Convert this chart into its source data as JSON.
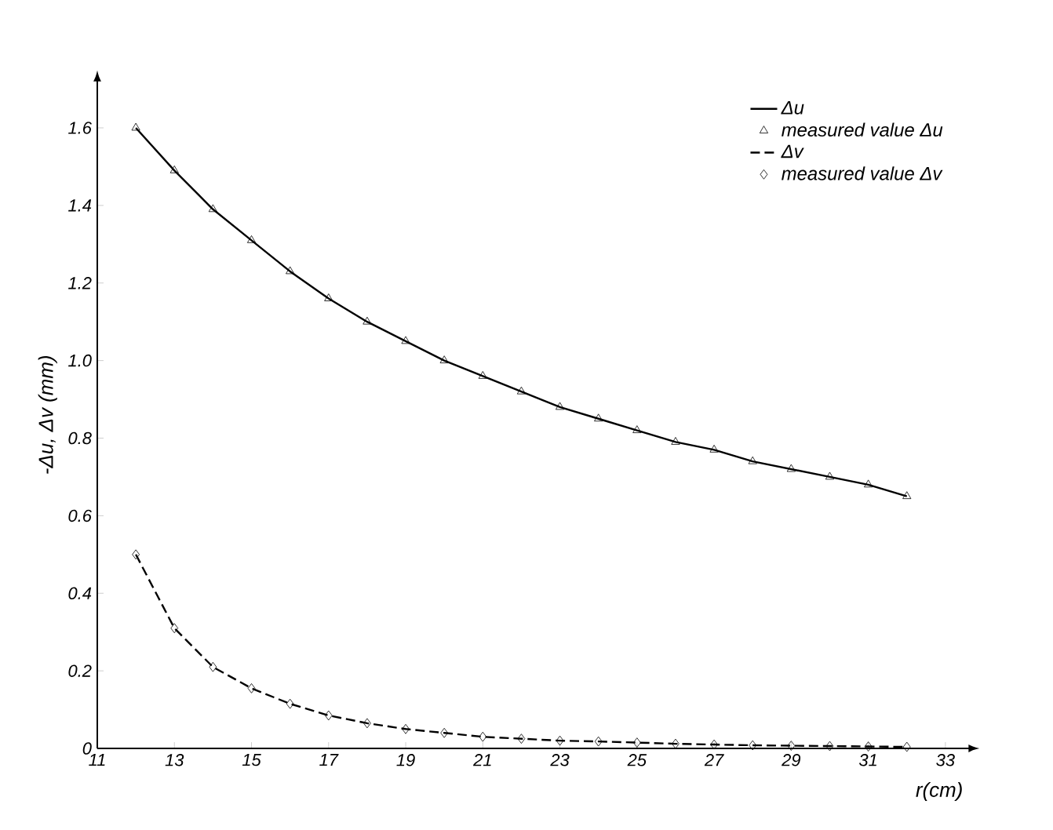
{
  "chart_data": {
    "type": "line",
    "xlabel": "r(cm)",
    "ylabel": "-Δu, Δv (mm)",
    "xlim": [
      11,
      33.6
    ],
    "ylim": [
      0,
      1.72
    ],
    "xticks": [
      11,
      13,
      15,
      17,
      19,
      21,
      23,
      25,
      27,
      29,
      31,
      33
    ],
    "yticks": [
      0,
      0.2,
      0.4,
      0.6,
      0.8,
      {
        "value": 1,
        "label": "1.0"
      },
      1.2,
      1.4,
      1.6
    ],
    "grid": false,
    "legend": "top right",
    "series": [
      {
        "name": "Δu",
        "line_style": "solid",
        "marker": "none",
        "color": "#000000",
        "x": [
          12,
          13,
          14,
          15,
          16,
          17,
          18,
          19,
          20,
          21,
          22,
          23,
          24,
          25,
          26,
          27,
          28,
          29,
          30,
          31,
          32
        ],
        "values": [
          1.6,
          1.49,
          1.39,
          1.31,
          1.23,
          1.16,
          1.1,
          1.05,
          1.0,
          0.96,
          0.92,
          0.88,
          0.85,
          0.82,
          0.79,
          0.77,
          0.74,
          0.72,
          0.7,
          0.68,
          0.65
        ]
      },
      {
        "name": "measured value Δu",
        "type": "scatter",
        "marker": "triangle",
        "color": "#000000",
        "x": [
          12,
          13,
          14,
          15,
          16,
          17,
          18,
          19,
          20,
          21,
          22,
          23,
          24,
          25,
          26,
          27,
          28,
          29,
          30,
          31,
          32
        ],
        "values": [
          1.6,
          1.49,
          1.39,
          1.31,
          1.23,
          1.16,
          1.1,
          1.05,
          1.0,
          0.96,
          0.92,
          0.88,
          0.85,
          0.82,
          0.79,
          0.77,
          0.74,
          0.72,
          0.7,
          0.68,
          0.65
        ]
      },
      {
        "name": "Δv",
        "line_style": "dashed",
        "marker": "none",
        "color": "#000000",
        "x": [
          12,
          13,
          14,
          15,
          16,
          17,
          18,
          19,
          20,
          21,
          22,
          23,
          24,
          25,
          26,
          27,
          28,
          29,
          30,
          31,
          32
        ],
        "values": [
          0.5,
          0.31,
          0.21,
          0.155,
          0.115,
          0.085,
          0.065,
          0.05,
          0.04,
          0.03,
          0.025,
          0.02,
          0.018,
          0.015,
          0.012,
          0.01,
          0.008,
          0.007,
          0.006,
          0.005,
          0.004
        ]
      },
      {
        "name": "measured value Δv",
        "type": "scatter",
        "marker": "diamond",
        "color": "#000000",
        "x": [
          12,
          13,
          14,
          15,
          16,
          17,
          18,
          19,
          20,
          21,
          22,
          23,
          24,
          25,
          26,
          27,
          28,
          29,
          30,
          31,
          32
        ],
        "values": [
          0.5,
          0.31,
          0.21,
          0.155,
          0.115,
          0.085,
          0.065,
          0.05,
          0.04,
          0.03,
          0.025,
          0.02,
          0.018,
          0.015,
          0.012,
          0.01,
          0.008,
          0.007,
          0.006,
          0.005,
          0.004
        ]
      }
    ]
  }
}
